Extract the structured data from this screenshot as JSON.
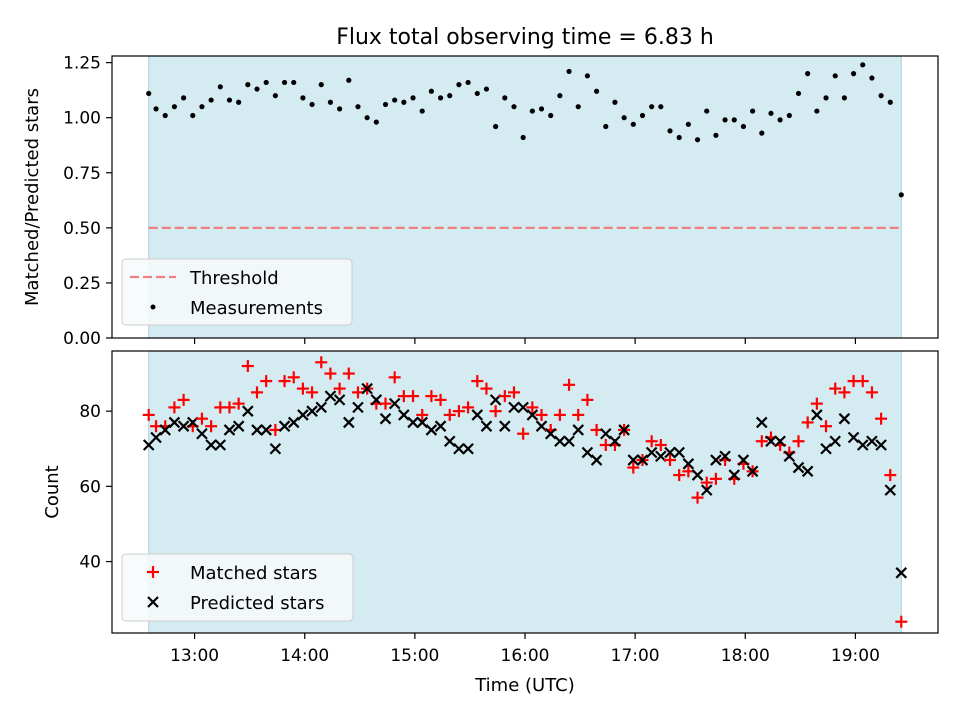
{
  "chart_data": [
    {
      "type": "scatter",
      "title": "Flux total observing time = 6.83 h",
      "xlabel": "",
      "ylabel": "Matched/Predicted stars",
      "ylim": [
        0,
        1.28
      ],
      "yticks": [
        "0.00",
        "0.25",
        "0.50",
        "0.75",
        "1.00",
        "1.25"
      ],
      "shaded_span": [
        "12:35",
        "19:25"
      ],
      "shade_color": "#d4ebf1",
      "threshold": {
        "name": "Threshold",
        "value": 0.5,
        "color": "#f08080",
        "style": "dashed"
      },
      "legend": {
        "placement": "lower-left",
        "entries": [
          "Threshold",
          "Measurements"
        ]
      },
      "series": [
        {
          "name": "Measurements",
          "color": "#000000",
          "marker": "dot",
          "x": [
            "12:35",
            "12:39",
            "12:44",
            "12:49",
            "12:54",
            "12:59",
            "13:04",
            "13:09",
            "13:14",
            "13:19",
            "13:24",
            "13:29",
            "13:34",
            "13:39",
            "13:44",
            "13:49",
            "13:54",
            "13:59",
            "14:04",
            "14:09",
            "14:14",
            "14:19",
            "14:24",
            "14:29",
            "14:34",
            "14:39",
            "14:44",
            "14:49",
            "14:54",
            "14:59",
            "15:04",
            "15:09",
            "15:14",
            "15:19",
            "15:24",
            "15:29",
            "15:34",
            "15:39",
            "15:44",
            "15:49",
            "15:54",
            "15:59",
            "16:04",
            "16:09",
            "16:14",
            "16:19",
            "16:24",
            "16:29",
            "16:34",
            "16:39",
            "16:44",
            "16:49",
            "16:54",
            "16:59",
            "17:04",
            "17:09",
            "17:14",
            "17:19",
            "17:24",
            "17:29",
            "17:34",
            "17:39",
            "17:44",
            "17:49",
            "17:54",
            "17:59",
            "18:04",
            "18:09",
            "18:14",
            "18:19",
            "18:24",
            "18:29",
            "18:34",
            "18:39",
            "18:44",
            "18:49",
            "18:54",
            "18:59",
            "19:04",
            "19:09",
            "19:14",
            "19:19",
            "19:25"
          ],
          "y": [
            1.11,
            1.04,
            1.01,
            1.05,
            1.09,
            1.01,
            1.05,
            1.08,
            1.14,
            1.08,
            1.07,
            1.15,
            1.13,
            1.16,
            1.1,
            1.16,
            1.16,
            1.09,
            1.06,
            1.15,
            1.07,
            1.04,
            1.17,
            1.05,
            1.0,
            0.98,
            1.06,
            1.08,
            1.07,
            1.09,
            1.03,
            1.12,
            1.09,
            1.1,
            1.15,
            1.16,
            1.11,
            1.13,
            0.96,
            1.09,
            1.05,
            0.91,
            1.03,
            1.04,
            1.01,
            1.1,
            1.21,
            1.05,
            1.19,
            1.12,
            0.96,
            1.07,
            1.0,
            0.97,
            1.01,
            1.05,
            1.05,
            0.94,
            0.91,
            0.97,
            0.9,
            1.03,
            0.92,
            0.99,
            0.99,
            0.96,
            1.03,
            0.93,
            1.02,
            0.99,
            1.01,
            1.11,
            1.2,
            1.03,
            1.09,
            1.19,
            1.09,
            1.2,
            1.24,
            1.18,
            1.1,
            1.07,
            0.65
          ]
        }
      ]
    },
    {
      "type": "scatter",
      "title": "",
      "xlabel": "Time (UTC)",
      "ylabel": "Count",
      "ylim": [
        21,
        96
      ],
      "yticks": [
        "40",
        "60",
        "80"
      ],
      "xlim": [
        "12:15",
        "19:45"
      ],
      "xticks": [
        "13:00",
        "14:00",
        "15:00",
        "16:00",
        "17:00",
        "18:00",
        "19:00"
      ],
      "shaded_span": [
        "12:35",
        "19:25"
      ],
      "shade_color": "#d4ebf1",
      "legend": {
        "placement": "lower-left",
        "entries": [
          "Matched stars",
          "Predicted stars"
        ]
      },
      "x": [
        "12:35",
        "12:39",
        "12:44",
        "12:49",
        "12:54",
        "12:59",
        "13:04",
        "13:09",
        "13:14",
        "13:19",
        "13:24",
        "13:29",
        "13:34",
        "13:39",
        "13:44",
        "13:49",
        "13:54",
        "13:59",
        "14:04",
        "14:09",
        "14:14",
        "14:19",
        "14:24",
        "14:29",
        "14:34",
        "14:39",
        "14:44",
        "14:49",
        "14:54",
        "14:59",
        "15:04",
        "15:09",
        "15:14",
        "15:19",
        "15:24",
        "15:29",
        "15:34",
        "15:39",
        "15:44",
        "15:49",
        "15:54",
        "15:59",
        "16:04",
        "16:09",
        "16:14",
        "16:19",
        "16:24",
        "16:29",
        "16:34",
        "16:39",
        "16:44",
        "16:49",
        "16:54",
        "16:59",
        "17:04",
        "17:09",
        "17:14",
        "17:19",
        "17:24",
        "17:29",
        "17:34",
        "17:39",
        "17:44",
        "17:49",
        "17:54",
        "17:59",
        "18:04",
        "18:09",
        "18:14",
        "18:19",
        "18:24",
        "18:29",
        "18:34",
        "18:39",
        "18:44",
        "18:49",
        "18:54",
        "18:59",
        "19:04",
        "19:09",
        "19:14",
        "19:19",
        "19:25"
      ],
      "series": [
        {
          "name": "Matched stars",
          "color": "#ff0000",
          "marker": "plus",
          "values": [
            79,
            76,
            76,
            81,
            83,
            76,
            78,
            76,
            81,
            81,
            82,
            92,
            85,
            88,
            75,
            88,
            89,
            86,
            85,
            93,
            90,
            86,
            90,
            85,
            86,
            82,
            82,
            89,
            84,
            84,
            79,
            84,
            83,
            79,
            80,
            81,
            88,
            86,
            80,
            84,
            85,
            74,
            81,
            79,
            75,
            79,
            87,
            79,
            83,
            75,
            71,
            71,
            75,
            65,
            67,
            72,
            71,
            67,
            63,
            64,
            57,
            61,
            62,
            67,
            62,
            66,
            64,
            72,
            73,
            71,
            69,
            72,
            77,
            82,
            76,
            86,
            85,
            88,
            88,
            85,
            78,
            63,
            24
          ]
        },
        {
          "name": "Predicted stars",
          "color": "#000000",
          "marker": "x",
          "values": [
            71,
            73,
            75,
            77,
            76,
            77,
            74,
            71,
            71,
            75,
            76,
            80,
            75,
            75,
            70,
            76,
            77,
            79,
            80,
            81,
            84,
            83,
            77,
            81,
            86,
            83,
            78,
            82,
            79,
            77,
            77,
            75,
            76,
            72,
            70,
            70,
            79,
            76,
            83,
            76,
            81,
            81,
            79,
            76,
            74,
            72,
            72,
            75,
            69,
            67,
            74,
            72,
            75,
            67,
            67,
            69,
            68,
            69,
            69,
            66,
            63,
            59,
            67,
            68,
            63,
            67,
            64,
            77,
            72,
            72,
            68,
            65,
            64,
            79,
            70,
            72,
            78,
            73,
            71,
            72,
            71,
            59,
            37
          ]
        }
      ]
    }
  ]
}
